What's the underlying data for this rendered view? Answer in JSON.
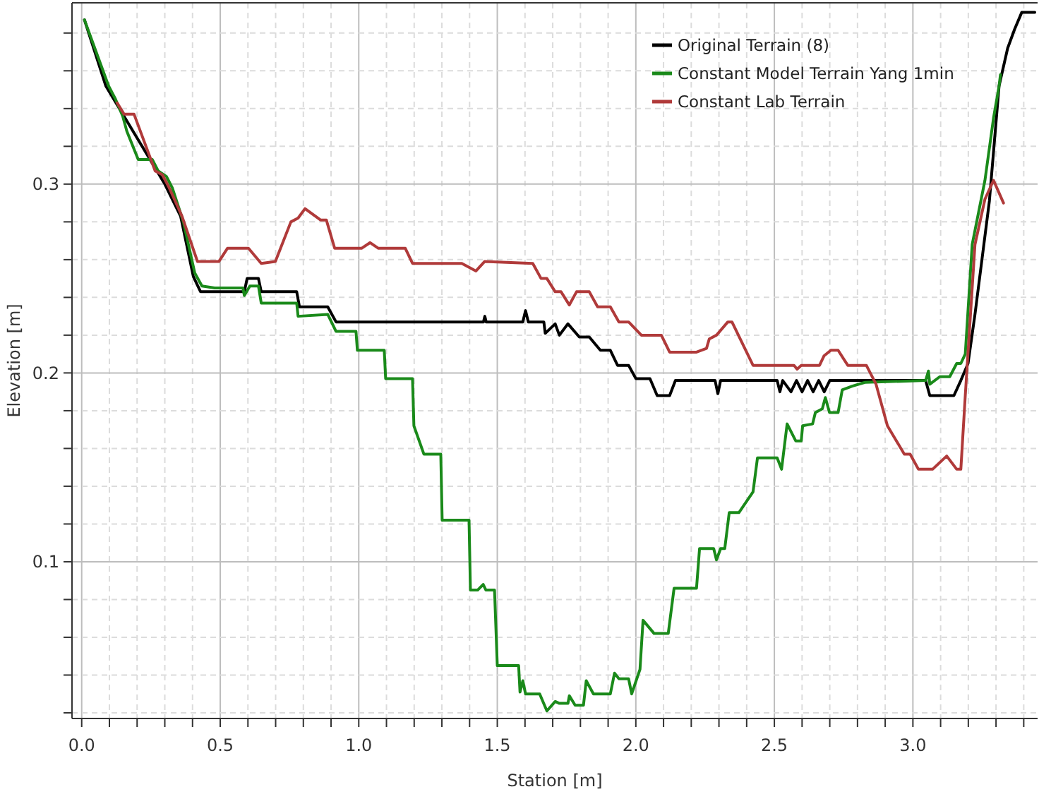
{
  "chart_data": {
    "type": "line",
    "xlabel": "Station [m]",
    "ylabel": "Elevation [m]",
    "xlim": [
      -0.035,
      3.45
    ],
    "ylim": [
      0.017,
      0.396
    ],
    "xticks": [
      {
        "value": 0,
        "label": "0.0"
      },
      {
        "value": 0.1,
        "label": null
      },
      {
        "value": 0.2,
        "label": null
      },
      {
        "value": 0.3,
        "label": null
      },
      {
        "value": 0.4,
        "label": null
      },
      {
        "value": 0.5,
        "label": "0.5"
      },
      {
        "value": 0.6,
        "label": null
      },
      {
        "value": 0.7,
        "label": null
      },
      {
        "value": 0.8,
        "label": null
      },
      {
        "value": 0.9,
        "label": null
      },
      {
        "value": 1,
        "label": "1.0"
      },
      {
        "value": 1.1,
        "label": null
      },
      {
        "value": 1.2,
        "label": null
      },
      {
        "value": 1.3,
        "label": null
      },
      {
        "value": 1.4,
        "label": null
      },
      {
        "value": 1.5,
        "label": "1.5"
      },
      {
        "value": 1.6,
        "label": null
      },
      {
        "value": 1.7,
        "label": null
      },
      {
        "value": 1.8,
        "label": null
      },
      {
        "value": 1.9,
        "label": null
      },
      {
        "value": 2,
        "label": "2.0"
      },
      {
        "value": 2.1,
        "label": null
      },
      {
        "value": 2.2,
        "label": null
      },
      {
        "value": 2.3,
        "label": null
      },
      {
        "value": 2.4,
        "label": null
      },
      {
        "value": 2.5,
        "label": "2.5"
      },
      {
        "value": 2.6,
        "label": null
      },
      {
        "value": 2.7,
        "label": null
      },
      {
        "value": 2.8,
        "label": null
      },
      {
        "value": 2.9,
        "label": null
      },
      {
        "value": 3,
        "label": "3.0"
      },
      {
        "value": 3.1,
        "label": null
      },
      {
        "value": 3.2,
        "label": null
      },
      {
        "value": 3.3,
        "label": null
      },
      {
        "value": 3.4,
        "label": null
      }
    ],
    "yticks": [
      {
        "value": 0.02,
        "label": null
      },
      {
        "value": 0.04,
        "label": null
      },
      {
        "value": 0.06,
        "label": null
      },
      {
        "value": 0.08,
        "label": null
      },
      0.1,
      {
        "value": 0.12,
        "label": null
      },
      {
        "value": 0.14,
        "label": null
      },
      {
        "value": 0.16,
        "label": null
      },
      {
        "value": 0.18,
        "label": null
      },
      0.2,
      {
        "value": 0.22,
        "label": null
      },
      {
        "value": 0.24,
        "label": null
      },
      {
        "value": 0.26,
        "label": null
      },
      {
        "value": 0.28,
        "label": null
      },
      0.3,
      {
        "value": 0.32,
        "label": null
      },
      {
        "value": 0.34,
        "label": null
      },
      {
        "value": 0.36,
        "label": null
      },
      {
        "value": 0.38,
        "label": null
      }
    ],
    "grid": true,
    "legend": "top right",
    "marker": "none",
    "line_style": "solid",
    "series": [
      {
        "name": "Original Terrain (8)",
        "color": "#000000",
        "x": [
          0.01,
          0.087,
          0.3,
          0.357,
          0.403,
          0.429,
          0.587,
          0.597,
          0.638,
          0.648,
          0.776,
          0.786,
          0.888,
          0.918,
          1.45,
          1.455,
          1.46,
          1.592,
          1.602,
          1.612,
          1.668,
          1.673,
          1.709,
          1.724,
          1.755,
          1.796,
          1.832,
          1.872,
          1.908,
          1.934,
          1.974,
          2.0,
          2.051,
          2.077,
          2.122,
          2.143,
          2.286,
          2.296,
          2.306,
          2.51,
          2.52,
          2.53,
          2.56,
          2.58,
          2.6,
          2.62,
          2.64,
          2.66,
          2.68,
          2.7,
          3.046,
          3.061,
          3.148,
          3.173,
          3.199,
          3.224,
          3.276,
          3.311,
          3.342,
          3.367,
          3.393,
          3.44
        ],
        "values": [
          0.387,
          0.352,
          0.3,
          0.283,
          0.251,
          0.243,
          0.243,
          0.25,
          0.25,
          0.243,
          0.243,
          0.235,
          0.235,
          0.227,
          0.227,
          0.23,
          0.227,
          0.227,
          0.233,
          0.227,
          0.227,
          0.221,
          0.226,
          0.22,
          0.226,
          0.219,
          0.219,
          0.212,
          0.212,
          0.204,
          0.204,
          0.197,
          0.197,
          0.188,
          0.188,
          0.196,
          0.196,
          0.189,
          0.196,
          0.196,
          0.19,
          0.196,
          0.19,
          0.196,
          0.19,
          0.196,
          0.19,
          0.196,
          0.19,
          0.196,
          0.196,
          0.188,
          0.188,
          0.196,
          0.205,
          0.231,
          0.291,
          0.352,
          0.372,
          0.382,
          0.391,
          0.391
        ]
      },
      {
        "name": "Constant Model Terrain Yang 1min",
        "color": "#1a8a1a",
        "x": [
          0.01,
          0.097,
          0.122,
          0.148,
          0.163,
          0.204,
          0.255,
          0.276,
          0.306,
          0.327,
          0.367,
          0.408,
          0.434,
          0.48,
          0.582,
          0.587,
          0.607,
          0.638,
          0.648,
          0.776,
          0.781,
          0.888,
          0.918,
          0.99,
          0.995,
          1.092,
          1.097,
          1.194,
          1.199,
          1.235,
          1.296,
          1.301,
          1.398,
          1.403,
          1.429,
          1.449,
          1.459,
          1.49,
          1.5,
          1.577,
          1.582,
          1.592,
          1.602,
          1.653,
          1.679,
          1.709,
          1.724,
          1.755,
          1.76,
          1.781,
          1.811,
          1.821,
          1.847,
          1.908,
          1.923,
          1.939,
          1.974,
          1.985,
          2.015,
          2.026,
          2.066,
          2.117,
          2.138,
          2.219,
          2.23,
          2.281,
          2.291,
          2.306,
          2.321,
          2.337,
          2.372,
          2.423,
          2.439,
          2.51,
          2.526,
          2.546,
          2.577,
          2.597,
          2.602,
          2.638,
          2.648,
          2.673,
          2.684,
          2.699,
          2.73,
          2.745,
          2.781,
          2.827,
          3.046,
          3.056,
          3.061,
          3.097,
          3.133,
          3.158,
          3.173,
          3.189,
          3.214,
          3.26,
          3.291,
          3.311,
          3.316
        ],
        "values": [
          0.387,
          0.352,
          0.345,
          0.336,
          0.328,
          0.313,
          0.313,
          0.307,
          0.304,
          0.298,
          0.28,
          0.253,
          0.246,
          0.245,
          0.245,
          0.241,
          0.246,
          0.246,
          0.237,
          0.237,
          0.23,
          0.231,
          0.222,
          0.222,
          0.212,
          0.212,
          0.197,
          0.197,
          0.172,
          0.157,
          0.157,
          0.122,
          0.122,
          0.085,
          0.085,
          0.088,
          0.085,
          0.085,
          0.045,
          0.045,
          0.031,
          0.037,
          0.03,
          0.03,
          0.021,
          0.026,
          0.025,
          0.025,
          0.029,
          0.024,
          0.024,
          0.037,
          0.03,
          0.03,
          0.041,
          0.038,
          0.038,
          0.03,
          0.043,
          0.069,
          0.062,
          0.062,
          0.086,
          0.086,
          0.107,
          0.107,
          0.101,
          0.107,
          0.107,
          0.126,
          0.126,
          0.137,
          0.155,
          0.155,
          0.149,
          0.173,
          0.164,
          0.164,
          0.172,
          0.173,
          0.179,
          0.181,
          0.187,
          0.179,
          0.179,
          0.191,
          0.193,
          0.195,
          0.196,
          0.201,
          0.194,
          0.198,
          0.198,
          0.205,
          0.205,
          0.21,
          0.268,
          0.302,
          0.335,
          0.352,
          0.358
        ]
      },
      {
        "name": "Constant Lab Terrain",
        "color": "#b03a3a",
        "x": [
          0.128,
          0.153,
          0.189,
          0.265,
          0.291,
          0.316,
          0.362,
          0.418,
          0.495,
          0.526,
          0.602,
          0.648,
          0.699,
          0.755,
          0.781,
          0.806,
          0.862,
          0.883,
          0.913,
          1.01,
          1.041,
          1.071,
          1.168,
          1.194,
          1.372,
          1.423,
          1.454,
          1.628,
          1.658,
          1.679,
          1.709,
          1.73,
          1.76,
          1.786,
          1.832,
          1.862,
          1.908,
          1.939,
          1.974,
          2.02,
          2.092,
          2.122,
          2.219,
          2.255,
          2.265,
          2.291,
          2.332,
          2.347,
          2.423,
          2.571,
          2.582,
          2.597,
          2.663,
          2.679,
          2.704,
          2.73,
          2.765,
          2.832,
          2.867,
          2.908,
          2.969,
          2.99,
          3.02,
          3.071,
          3.122,
          3.158,
          3.173,
          3.189,
          3.224,
          3.26,
          3.291,
          3.327
        ],
        "values": [
          0.343,
          0.337,
          0.337,
          0.307,
          0.305,
          0.298,
          0.283,
          0.259,
          0.259,
          0.266,
          0.266,
          0.258,
          0.259,
          0.28,
          0.282,
          0.287,
          0.281,
          0.281,
          0.266,
          0.266,
          0.269,
          0.266,
          0.266,
          0.258,
          0.258,
          0.254,
          0.259,
          0.258,
          0.25,
          0.25,
          0.243,
          0.243,
          0.236,
          0.243,
          0.243,
          0.235,
          0.235,
          0.227,
          0.227,
          0.22,
          0.22,
          0.211,
          0.211,
          0.213,
          0.218,
          0.22,
          0.227,
          0.227,
          0.204,
          0.204,
          0.202,
          0.204,
          0.204,
          0.209,
          0.212,
          0.212,
          0.204,
          0.204,
          0.194,
          0.172,
          0.157,
          0.157,
          0.149,
          0.149,
          0.156,
          0.149,
          0.149,
          0.188,
          0.268,
          0.292,
          0.302,
          0.29
        ]
      }
    ]
  }
}
